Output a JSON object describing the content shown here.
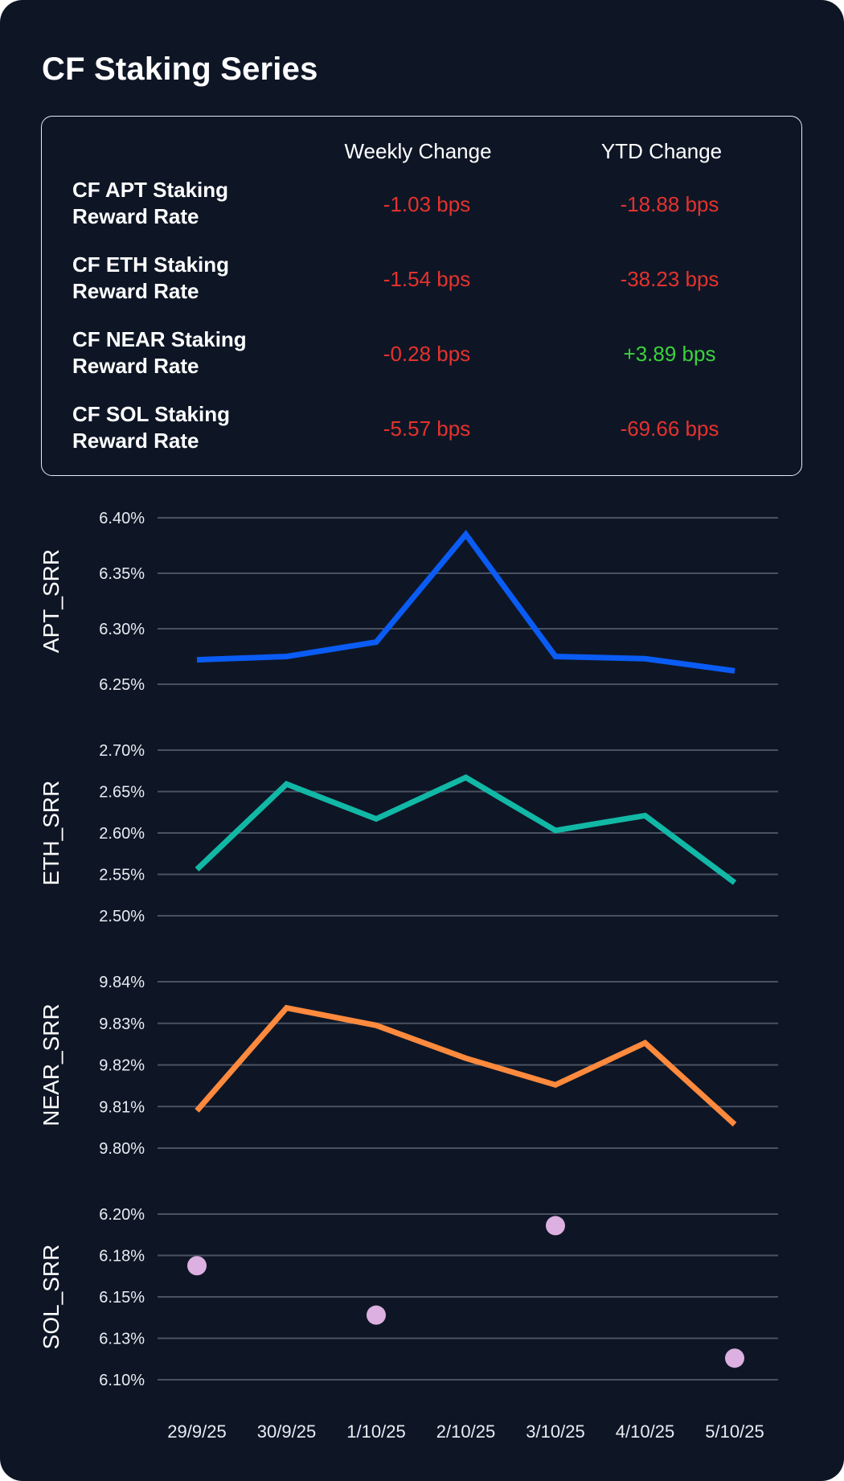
{
  "title": "CF Staking Series",
  "summary": {
    "headers": {
      "weekly": "Weekly Change",
      "ytd": "YTD Change"
    },
    "rows": [
      {
        "name": "CF APT Staking Reward Rate",
        "weekly": "-1.03 bps",
        "ytd": "-18.88 bps",
        "weekly_sign": "neg",
        "ytd_sign": "neg"
      },
      {
        "name": "CF ETH Staking Reward Rate",
        "weekly": "-1.54 bps",
        "ytd": "-38.23 bps",
        "weekly_sign": "neg",
        "ytd_sign": "neg"
      },
      {
        "name": "CF NEAR Staking Reward Rate",
        "weekly": "-0.28 bps",
        "ytd": "+3.89 bps",
        "weekly_sign": "neg",
        "ytd_sign": "pos"
      },
      {
        "name": "CF SOL Staking Reward Rate",
        "weekly": "-5.57 bps",
        "ytd": "-69.66 bps",
        "weekly_sign": "neg",
        "ytd_sign": "neg"
      }
    ]
  },
  "chart_data": [
    {
      "type": "line",
      "ylabel": "APT_SRR",
      "x": [
        "29/9/25",
        "30/9/25",
        "1/10/25",
        "2/10/25",
        "3/10/25",
        "4/10/25",
        "5/10/25"
      ],
      "values": [
        6.272,
        6.275,
        6.288,
        6.385,
        6.275,
        6.273,
        6.262
      ],
      "ylim": [
        6.25,
        6.4
      ],
      "yticks": [
        6.25,
        6.3,
        6.35,
        6.4
      ],
      "ytick_labels": [
        "6.25%",
        "6.30%",
        "6.35%",
        "6.40%"
      ],
      "color": "#0a5cf5"
    },
    {
      "type": "line",
      "ylabel": "ETH_SRR",
      "x": [
        "29/9/25",
        "30/9/25",
        "1/10/25",
        "2/10/25",
        "3/10/25",
        "4/10/25",
        "5/10/25"
      ],
      "values": [
        2.556,
        2.659,
        2.617,
        2.667,
        2.603,
        2.621,
        2.54
      ],
      "ylim": [
        2.5,
        2.7
      ],
      "yticks": [
        2.5,
        2.55,
        2.6,
        2.65,
        2.7
      ],
      "ytick_labels": [
        "2.50%",
        "2.55%",
        "2.60%",
        "2.65%",
        "2.70%"
      ],
      "color": "#12b8a6"
    },
    {
      "type": "line",
      "ylabel": "NEAR_SRR",
      "x": [
        "29/9/25",
        "30/9/25",
        "1/10/25",
        "2/10/25",
        "3/10/25",
        "4/10/25",
        "5/10/25"
      ],
      "values": [
        9.809,
        9.8337,
        9.8295,
        9.8216,
        9.8152,
        9.8253,
        9.8057
      ],
      "ylim": [
        9.8,
        9.84
      ],
      "yticks": [
        9.8,
        9.81,
        9.82,
        9.83,
        9.84
      ],
      "ytick_labels": [
        "9.80%",
        "9.81%",
        "9.82%",
        "9.83%",
        "9.84%"
      ],
      "color": "#ff8a3d"
    },
    {
      "type": "scatter",
      "ylabel": "SOL_SRR",
      "x": [
        "29/9/25",
        "30/9/25",
        "1/10/25",
        "2/10/25",
        "3/10/25",
        "4/10/25",
        "5/10/25"
      ],
      "values": [
        6.1688,
        null,
        6.139,
        null,
        6.193,
        null,
        6.113
      ],
      "ylim": [
        6.1,
        6.2
      ],
      "yticks": [
        6.1,
        6.125,
        6.15,
        6.175,
        6.2
      ],
      "ytick_labels": [
        "6.10%",
        "6.13%",
        "6.15%",
        "6.18%",
        "6.20%"
      ],
      "color": "#dcb0e0"
    }
  ]
}
